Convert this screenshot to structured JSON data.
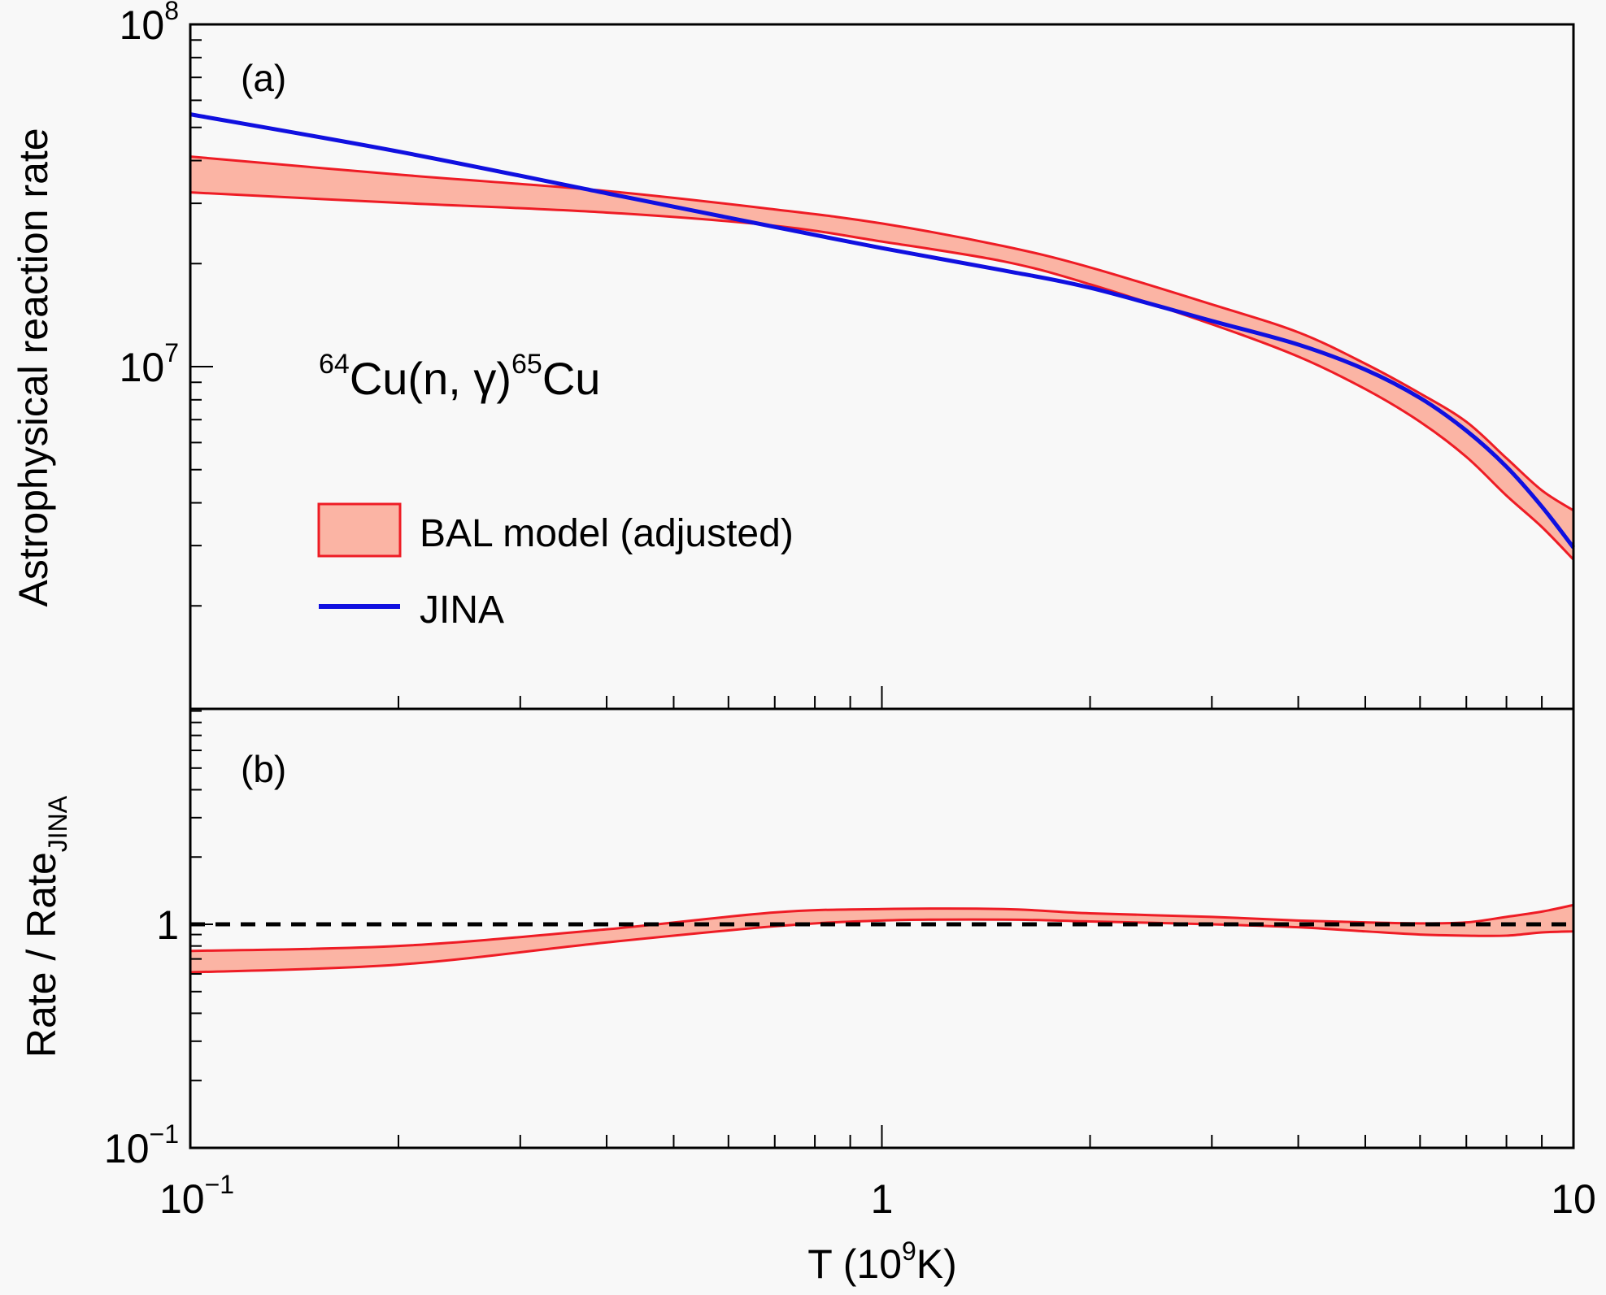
{
  "chart_data": [
    {
      "panel": "(a)",
      "type": "area",
      "title": "",
      "xlabel": "T (10^9K)",
      "xlabel_main": "T (10",
      "xlabel_sup": "9",
      "xlabel_tail": "K)",
      "ylabel": "Astrophysical reaction rate",
      "xscale": "log",
      "yscale": "log",
      "xlim": [
        0.1,
        10
      ],
      "ylim": [
        1000000,
        100000000
      ],
      "y_tick_labels": [
        {
          "value": 10000000,
          "base": "10",
          "exp": "7"
        },
        {
          "value": 100000000,
          "base": "10",
          "exp": "8"
        }
      ],
      "annotation": {
        "pre_sup": "64",
        "main1": "Cu(n, γ)",
        "mid_sup": "65",
        "main2": "Cu"
      },
      "legend": {
        "placement": "center-left",
        "entries": [
          {
            "label": "BAL model (adjusted)",
            "kind": "band"
          },
          {
            "label": "JINA",
            "kind": "line"
          }
        ]
      },
      "x": [
        0.1,
        0.2,
        0.4,
        0.7,
        1.0,
        1.5,
        2.0,
        3.0,
        4.0,
        5.0,
        6.0,
        7.0,
        8.0,
        9.0,
        10.0
      ],
      "series": [
        {
          "name": "BAL model (adjusted)",
          "kind": "band",
          "color": "#ee1c25",
          "fill": "#fbb4a4",
          "upper": [
            41100000,
            36400000,
            32600000,
            28800000,
            26200000,
            22500000,
            19500000,
            15200000,
            12600000,
            10200000,
            8350000,
            6900000,
            5400000,
            4350000,
            3800000
          ],
          "lower": [
            32300000,
            30100000,
            28200000,
            25800000,
            23200000,
            20300000,
            17400000,
            13300000,
            10700000,
            8600000,
            6900000,
            5450000,
            4200000,
            3400000,
            2730000
          ]
        },
        {
          "name": "JINA",
          "kind": "line",
          "color": "#1010e0",
          "values": [
            54600000,
            42500000,
            32100000,
            25600000,
            22200000,
            19100000,
            17000000,
            13600000,
            11600000,
            9800000,
            8100000,
            6500000,
            5100000,
            3900000,
            2960000
          ]
        }
      ]
    },
    {
      "panel": "(b)",
      "type": "area",
      "xlabel": "T (10^9K)",
      "ylabel_main": "Rate / Rate",
      "ylabel_sub": "JINA",
      "xscale": "log",
      "yscale": "log",
      "xlim": [
        0.1,
        10
      ],
      "ylim": [
        0.1,
        9.2
      ],
      "x_tick_labels": [
        {
          "value": 0.1,
          "base": "10",
          "exp": "−1"
        },
        {
          "value": 1,
          "base": "1",
          "exp": ""
        },
        {
          "value": 10,
          "base": "10",
          "exp": ""
        }
      ],
      "y_tick_labels": [
        {
          "value": 0.1,
          "base": "10",
          "exp": "−1"
        },
        {
          "value": 1,
          "base": "1",
          "exp": ""
        }
      ],
      "reference_line": {
        "y": 1,
        "style": "dashed",
        "color": "#000000"
      },
      "x": [
        0.1,
        0.2,
        0.4,
        0.7,
        1.0,
        1.5,
        2.0,
        3.0,
        4.0,
        5.0,
        6.0,
        7.0,
        8.0,
        9.0,
        10.0
      ],
      "series": [
        {
          "name": "BAL model (adjusted) / JINA",
          "kind": "band",
          "color": "#ee1c25",
          "fill": "#fbb4a4",
          "upper": [
            0.76,
            0.8,
            0.95,
            1.13,
            1.17,
            1.17,
            1.12,
            1.08,
            1.04,
            1.02,
            1.01,
            1.02,
            1.08,
            1.14,
            1.22
          ],
          "lower": [
            0.61,
            0.66,
            0.83,
            0.98,
            1.04,
            1.05,
            1.03,
            1.0,
            0.97,
            0.93,
            0.9,
            0.89,
            0.89,
            0.92,
            0.93
          ]
        }
      ]
    }
  ]
}
